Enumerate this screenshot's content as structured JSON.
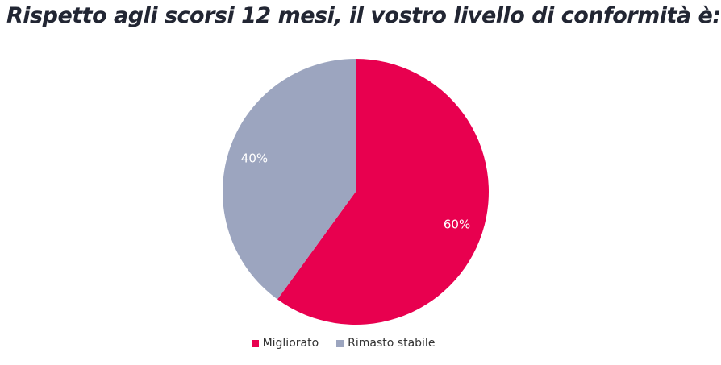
{
  "chart_data": {
    "type": "pie",
    "title": "Rispetto agli scorsi 12 mesi, il vostro livello di conformità è:",
    "categories": [
      "Migliorato",
      "Rimasto stabile"
    ],
    "values": [
      60,
      40
    ],
    "labels": [
      "60%",
      "40%"
    ],
    "colors": [
      "#E8004F",
      "#9CA5BF"
    ],
    "legend_position": "bottom"
  }
}
